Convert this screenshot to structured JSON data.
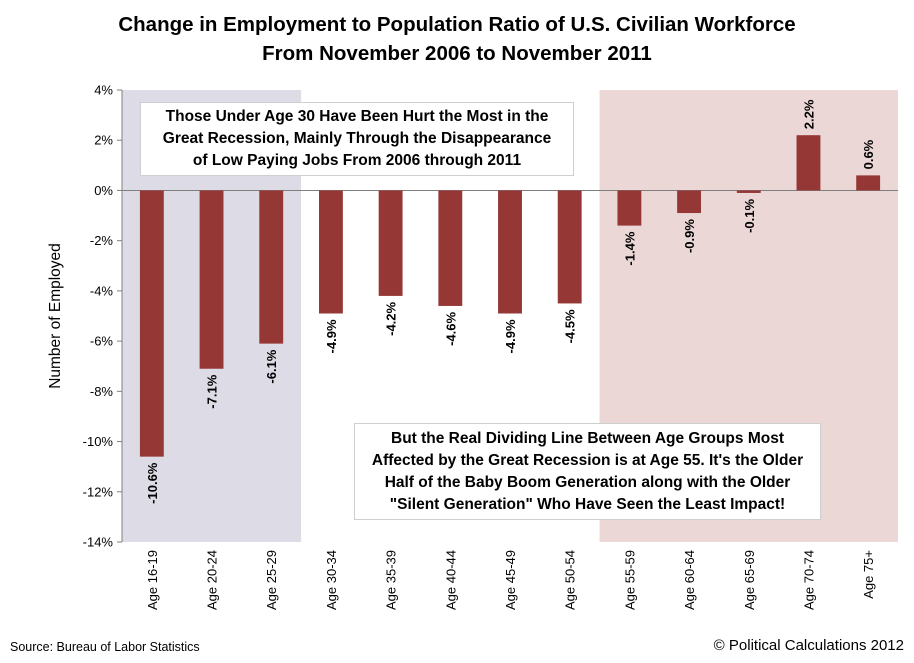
{
  "title_line1": "Change in Employment to Population Ratio of U.S. Civilian Workforce",
  "title_line2": "From November 2006 to November 2011",
  "annotation_top": [
    "Those Under Age 30 Have Been Hurt the Most in the",
    "Great Recession, Mainly Through the Disappearance",
    "of Low Paying Jobs From 2006 through 2011"
  ],
  "annotation_bottom": [
    "But the Real Dividing Line Between Age Groups Most",
    "Affected by the Great Recession is at Age 55.  It's the Older",
    "Half of the Baby Boom Generation along with the Older",
    "\"Silent Generation\" Who Have Seen the Least Impact!"
  ],
  "source": "Source: Bureau of Labor Statistics",
  "credit": "© Political Calculations 2012",
  "colors": {
    "bar": "#953735",
    "shade_left": "#dddbe5",
    "shade_right": "#ecd7d7"
  },
  "chart_data": {
    "type": "bar",
    "title": "Change in Employment to Population Ratio of U.S. Civilian Workforce From November 2006 to November 2011",
    "xlabel": "",
    "ylabel": "Number of Employed",
    "ylim": [
      -14,
      4
    ],
    "yticks": [
      4,
      2,
      0,
      -2,
      -4,
      -6,
      -8,
      -10,
      -12,
      -14
    ],
    "ytick_labels": [
      "4%",
      "2%",
      "0%",
      "-2%",
      "-4%",
      "-6%",
      "-8%",
      "-10%",
      "-12%",
      "-14%"
    ],
    "categories": [
      "Age 16-19",
      "Age 20-24",
      "Age 25-29",
      "Age 30-34",
      "Age 35-39",
      "Age 40-44",
      "Age 45-49",
      "Age 50-54",
      "Age 55-59",
      "Age 60-64",
      "Age 65-69",
      "Age 70-74",
      "Age 75+"
    ],
    "values": [
      -10.6,
      -7.1,
      -6.1,
      -4.9,
      -4.2,
      -4.6,
      -4.9,
      -4.5,
      -1.4,
      -0.9,
      -0.1,
      2.2,
      0.6
    ],
    "data_labels": [
      "-10.6%",
      "-7.1%",
      "-6.1%",
      "-4.9%",
      "-4.2%",
      "-4.6%",
      "-4.9%",
      "-4.5%",
      "-1.4%",
      "-0.9%",
      "-0.1%",
      "2.2%",
      "0.6%"
    ],
    "shaded_regions": [
      {
        "from": "Age 16-19",
        "to": "Age 25-29",
        "color": "#dddbe5"
      },
      {
        "from": "Age 55-59",
        "to": "Age 75+",
        "color": "#ecd7d7"
      }
    ],
    "grid": false,
    "legend": "none"
  }
}
